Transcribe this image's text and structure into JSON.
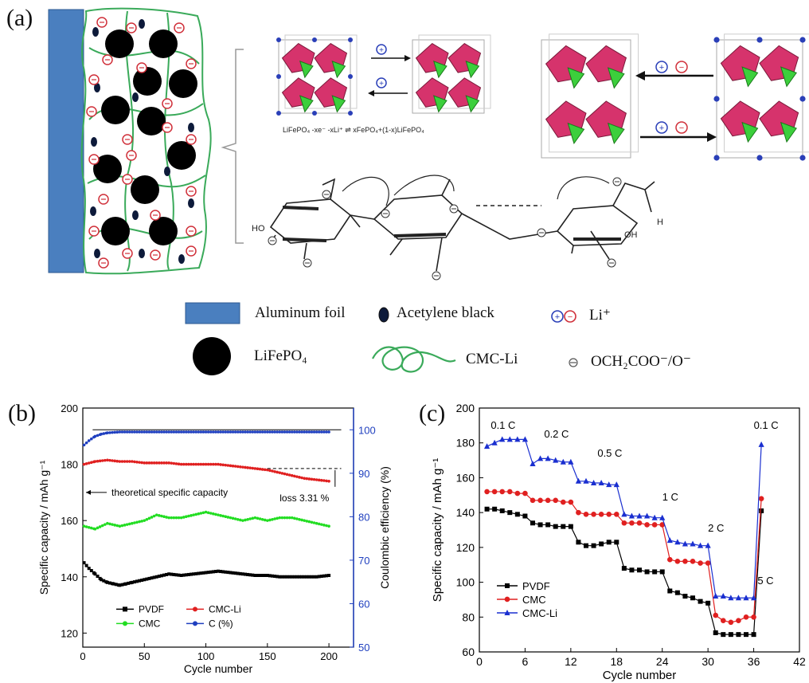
{
  "figure": {
    "panel_a_label": "(a)",
    "panel_b_label": "(b)",
    "panel_c_label": "(c)",
    "reaction_text": "LiFePO₄ -xe⁻ -xLi⁺ ⇌ xFePO₄+(1-x)LiFePO₄",
    "molecule_labels": {
      "ho": "HO",
      "oh": "OH",
      "h": "H"
    }
  },
  "schematic_legend": {
    "aluminum_foil": "Aluminum foil",
    "acetylene_black": "Acetylene black",
    "li_ion": "Li⁺",
    "lifepo4": "LiFePO₄",
    "cmc_li": "CMC-Li",
    "carboxylate": "OCH₂COO⁻/O⁻"
  },
  "colors": {
    "aluminum_foil": "#4a7fbf",
    "binder_network": "#3aaa5a",
    "octahedra": "#d6336c",
    "tetrahedra": "#3ccf3c",
    "li_marker_blue": "#2a3fb8",
    "li_marker_red": "#d0303a",
    "pvdf": "#000000",
    "cmc": "#e02020",
    "cmc_li": "#1a2fd0",
    "cmc_b": "#22dd22",
    "coulombic": "#1f3fbf"
  },
  "chart_data": [
    {
      "type": "line",
      "panel": "(b)",
      "xlabel": "Cycle number",
      "ylabel": "Specific capacity / mAh g⁻¹",
      "y2label": "Coulombic efficiency (%)",
      "xlim": [
        0,
        220
      ],
      "ylim": [
        115,
        200
      ],
      "y2lim": [
        50,
        105
      ],
      "xticks": [
        0,
        50,
        100,
        150,
        200
      ],
      "yticks": [
        120,
        140,
        160,
        180,
        200
      ],
      "y2ticks": [
        50,
        60,
        70,
        80,
        90,
        100
      ],
      "annotations": {
        "theoretical": "theoretical specific capacity",
        "loss": "loss 3.31 %",
        "theoretical_value": 170
      },
      "legend": [
        "PVDF",
        "CMC-Li",
        "CMC",
        "C (%)"
      ],
      "series": [
        {
          "name": "PVDF",
          "axis": "left",
          "values_summary": "starts 145, dips to 137 by ~cycle 30, recovers to ~141",
          "points": [
            [
              1,
              145
            ],
            [
              5,
              143
            ],
            [
              10,
              141
            ],
            [
              15,
              139
            ],
            [
              20,
              138
            ],
            [
              25,
              137.5
            ],
            [
              30,
              137
            ],
            [
              35,
              137.5
            ],
            [
              40,
              138
            ],
            [
              50,
              139
            ],
            [
              60,
              140
            ],
            [
              70,
              141
            ],
            [
              80,
              140.5
            ],
            [
              90,
              141
            ],
            [
              100,
              141.5
            ],
            [
              110,
              142
            ],
            [
              120,
              141.5
            ],
            [
              130,
              141
            ],
            [
              140,
              140.5
            ],
            [
              150,
              140.5
            ],
            [
              160,
              140
            ],
            [
              170,
              140
            ],
            [
              180,
              140
            ],
            [
              190,
              140
            ],
            [
              200,
              140.5
            ]
          ]
        },
        {
          "name": "CMC",
          "axis": "left",
          "values_summary": "fluctuates ~157–164",
          "points": [
            [
              1,
              158
            ],
            [
              10,
              157
            ],
            [
              20,
              159
            ],
            [
              30,
              158
            ],
            [
              40,
              159
            ],
            [
              50,
              160
            ],
            [
              60,
              162
            ],
            [
              70,
              161
            ],
            [
              80,
              161
            ],
            [
              90,
              162
            ],
            [
              100,
              163
            ],
            [
              110,
              162
            ],
            [
              120,
              161
            ],
            [
              130,
              160
            ],
            [
              140,
              161
            ],
            [
              150,
              160
            ],
            [
              160,
              161
            ],
            [
              170,
              161
            ],
            [
              180,
              160
            ],
            [
              190,
              159
            ],
            [
              200,
              158
            ]
          ]
        },
        {
          "name": "CMC-Li",
          "axis": "left",
          "values_summary": "~181 declining to ~174",
          "points": [
            [
              1,
              180
            ],
            [
              10,
              181
            ],
            [
              20,
              181.5
            ],
            [
              30,
              181
            ],
            [
              40,
              181
            ],
            [
              50,
              180.5
            ],
            [
              60,
              180.5
            ],
            [
              70,
              180.5
            ],
            [
              80,
              180
            ],
            [
              90,
              180
            ],
            [
              100,
              180
            ],
            [
              110,
              180
            ],
            [
              120,
              179.5
            ],
            [
              130,
              179
            ],
            [
              140,
              178.5
            ],
            [
              150,
              178
            ],
            [
              160,
              177
            ],
            [
              170,
              176
            ],
            [
              180,
              175
            ],
            [
              190,
              174.5
            ],
            [
              200,
              174
            ]
          ]
        },
        {
          "name": "C (%)",
          "axis": "right",
          "values_summary": "~96 at cycle 1, ~99.5 thereafter",
          "points": [
            [
              1,
              96.5
            ],
            [
              5,
              97.5
            ],
            [
              10,
              98.5
            ],
            [
              15,
              99
            ],
            [
              20,
              99.3
            ],
            [
              30,
              99.5
            ],
            [
              50,
              99.5
            ],
            [
              80,
              99.5
            ],
            [
              100,
              99.5
            ],
            [
              130,
              99.5
            ],
            [
              160,
              99.5
            ],
            [
              180,
              99.5
            ],
            [
              200,
              99.5
            ]
          ]
        }
      ]
    },
    {
      "type": "line",
      "panel": "(c)",
      "xlabel": "Cycle number",
      "ylabel": "Specific capacity / mAh g⁻¹",
      "xlim": [
        0,
        42
      ],
      "ylim": [
        60,
        200
      ],
      "xticks": [
        0,
        6,
        12,
        18,
        24,
        30,
        36,
        42
      ],
      "yticks": [
        60,
        80,
        100,
        120,
        140,
        160,
        180,
        200
      ],
      "rate_labels": [
        "0.1 C",
        "0.2 C",
        "0.5 C",
        "1 C",
        "2 C",
        "5 C",
        "0.1 C"
      ],
      "legend": [
        "PVDF",
        "CMC",
        "CMC-Li"
      ],
      "series": [
        {
          "name": "PVDF",
          "values": [
            142,
            142,
            141,
            140,
            139,
            138,
            134,
            133,
            133,
            132,
            132,
            132,
            123,
            121,
            121,
            122,
            123,
            123,
            108,
            107,
            107,
            106,
            106,
            106,
            95,
            94,
            92,
            91,
            89,
            88,
            71,
            70,
            70,
            70,
            70,
            70,
            141
          ]
        },
        {
          "name": "CMC",
          "values": [
            152,
            152,
            152,
            152,
            151,
            151,
            147,
            147,
            147,
            147,
            146,
            146,
            140,
            139,
            139,
            139,
            139,
            139,
            134,
            134,
            134,
            133,
            133,
            133,
            113,
            112,
            112,
            112,
            111,
            111,
            81,
            78,
            77,
            78,
            80,
            80,
            148
          ]
        },
        {
          "name": "CMC-Li",
          "values": [
            178,
            180,
            182,
            182,
            182,
            182,
            168,
            171,
            171,
            170,
            169,
            169,
            158,
            158,
            157,
            157,
            156,
            156,
            139,
            138,
            138,
            138,
            137,
            137,
            124,
            123,
            122,
            122,
            121,
            121,
            92,
            92,
            91,
            91,
            91,
            91,
            179
          ]
        }
      ]
    }
  ]
}
